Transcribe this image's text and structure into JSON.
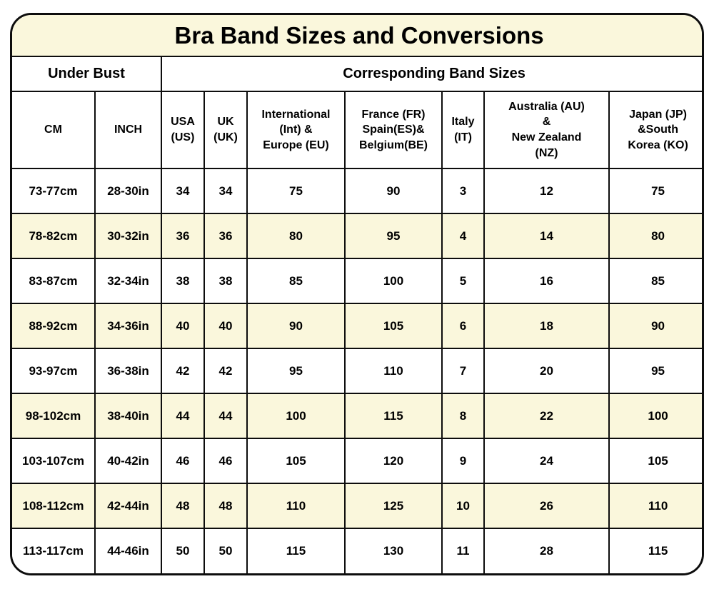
{
  "title": "Bra Band Sizes and Conversions",
  "colors": {
    "title_background": "#faf7dc",
    "row_alt_background": "#faf7dc",
    "row_background": "#ffffff",
    "border": "#0d0d0d",
    "text": "#000000"
  },
  "chart_data": {
    "type": "table",
    "title": "Bra Band Sizes and Conversions",
    "group_headers": [
      {
        "label": "Under Bust",
        "span": 2
      },
      {
        "label": "Corresponding Band Sizes",
        "span": 7
      }
    ],
    "columns": [
      "CM",
      "INCH",
      "USA\n(US)",
      "UK\n(UK)",
      "International\n(Int) &\nEurope (EU)",
      "France (FR)\nSpain(ES)&\nBelgium(BE)",
      "Italy\n(IT)",
      "Australia (AU)\n&\nNew Zealand\n(NZ)",
      "Japan (JP)\n&South\nKorea (KO)"
    ],
    "rows": [
      [
        "73-77cm",
        "28-30in",
        "34",
        "34",
        "75",
        "90",
        "3",
        "12",
        "75"
      ],
      [
        "78-82cm",
        "30-32in",
        "36",
        "36",
        "80",
        "95",
        "4",
        "14",
        "80"
      ],
      [
        "83-87cm",
        "32-34in",
        "38",
        "38",
        "85",
        "100",
        "5",
        "16",
        "85"
      ],
      [
        "88-92cm",
        "34-36in",
        "40",
        "40",
        "90",
        "105",
        "6",
        "18",
        "90"
      ],
      [
        "93-97cm",
        "36-38in",
        "42",
        "42",
        "95",
        "110",
        "7",
        "20",
        "95"
      ],
      [
        "98-102cm",
        "38-40in",
        "44",
        "44",
        "100",
        "115",
        "8",
        "22",
        "100"
      ],
      [
        "103-107cm",
        "40-42in",
        "46",
        "46",
        "105",
        "120",
        "9",
        "24",
        "105"
      ],
      [
        "108-112cm",
        "42-44in",
        "48",
        "48",
        "110",
        "125",
        "10",
        "26",
        "110"
      ],
      [
        "113-117cm",
        "44-46in",
        "50",
        "50",
        "115",
        "130",
        "11",
        "28",
        "115"
      ]
    ]
  }
}
